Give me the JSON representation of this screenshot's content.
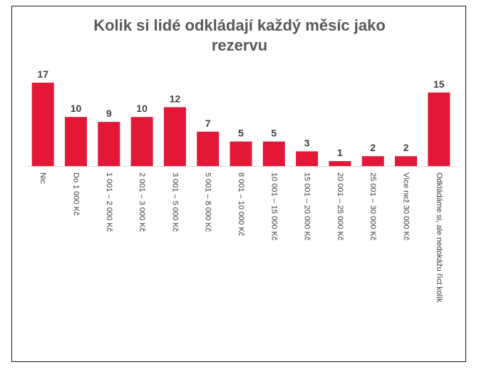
{
  "chart_data": {
    "type": "bar",
    "title_lines": [
      "Kolik si lidé odkládají každý měsíc jako",
      "rezervu"
    ],
    "xlabel": "",
    "ylabel": "",
    "ylim": [
      0,
      17
    ],
    "grid": false,
    "legend": "none",
    "bar_color": "#e31837",
    "axis_color": "#d9d9d9",
    "categories": [
      "Nic",
      "Do 1 000 Kč",
      "1 001 – 2 000 Kč",
      "2 001 – 3 000 Kč",
      "3 001 – 5 000 Kč",
      "5 001 – 8 000 Kč",
      "8 001 – 10 000 Kč",
      "10 001 – 15 000 Kč",
      "15 001 – 20 000 Kč",
      "20 001 – 25 000 Kč",
      "25 001 – 30 000 Kč",
      "Více než 30 000 Kč",
      "Odkládáme si, ale nedokážu říct kolik"
    ],
    "values": [
      17,
      10,
      9,
      10,
      12,
      7,
      5,
      5,
      3,
      1,
      2,
      2,
      15
    ]
  }
}
